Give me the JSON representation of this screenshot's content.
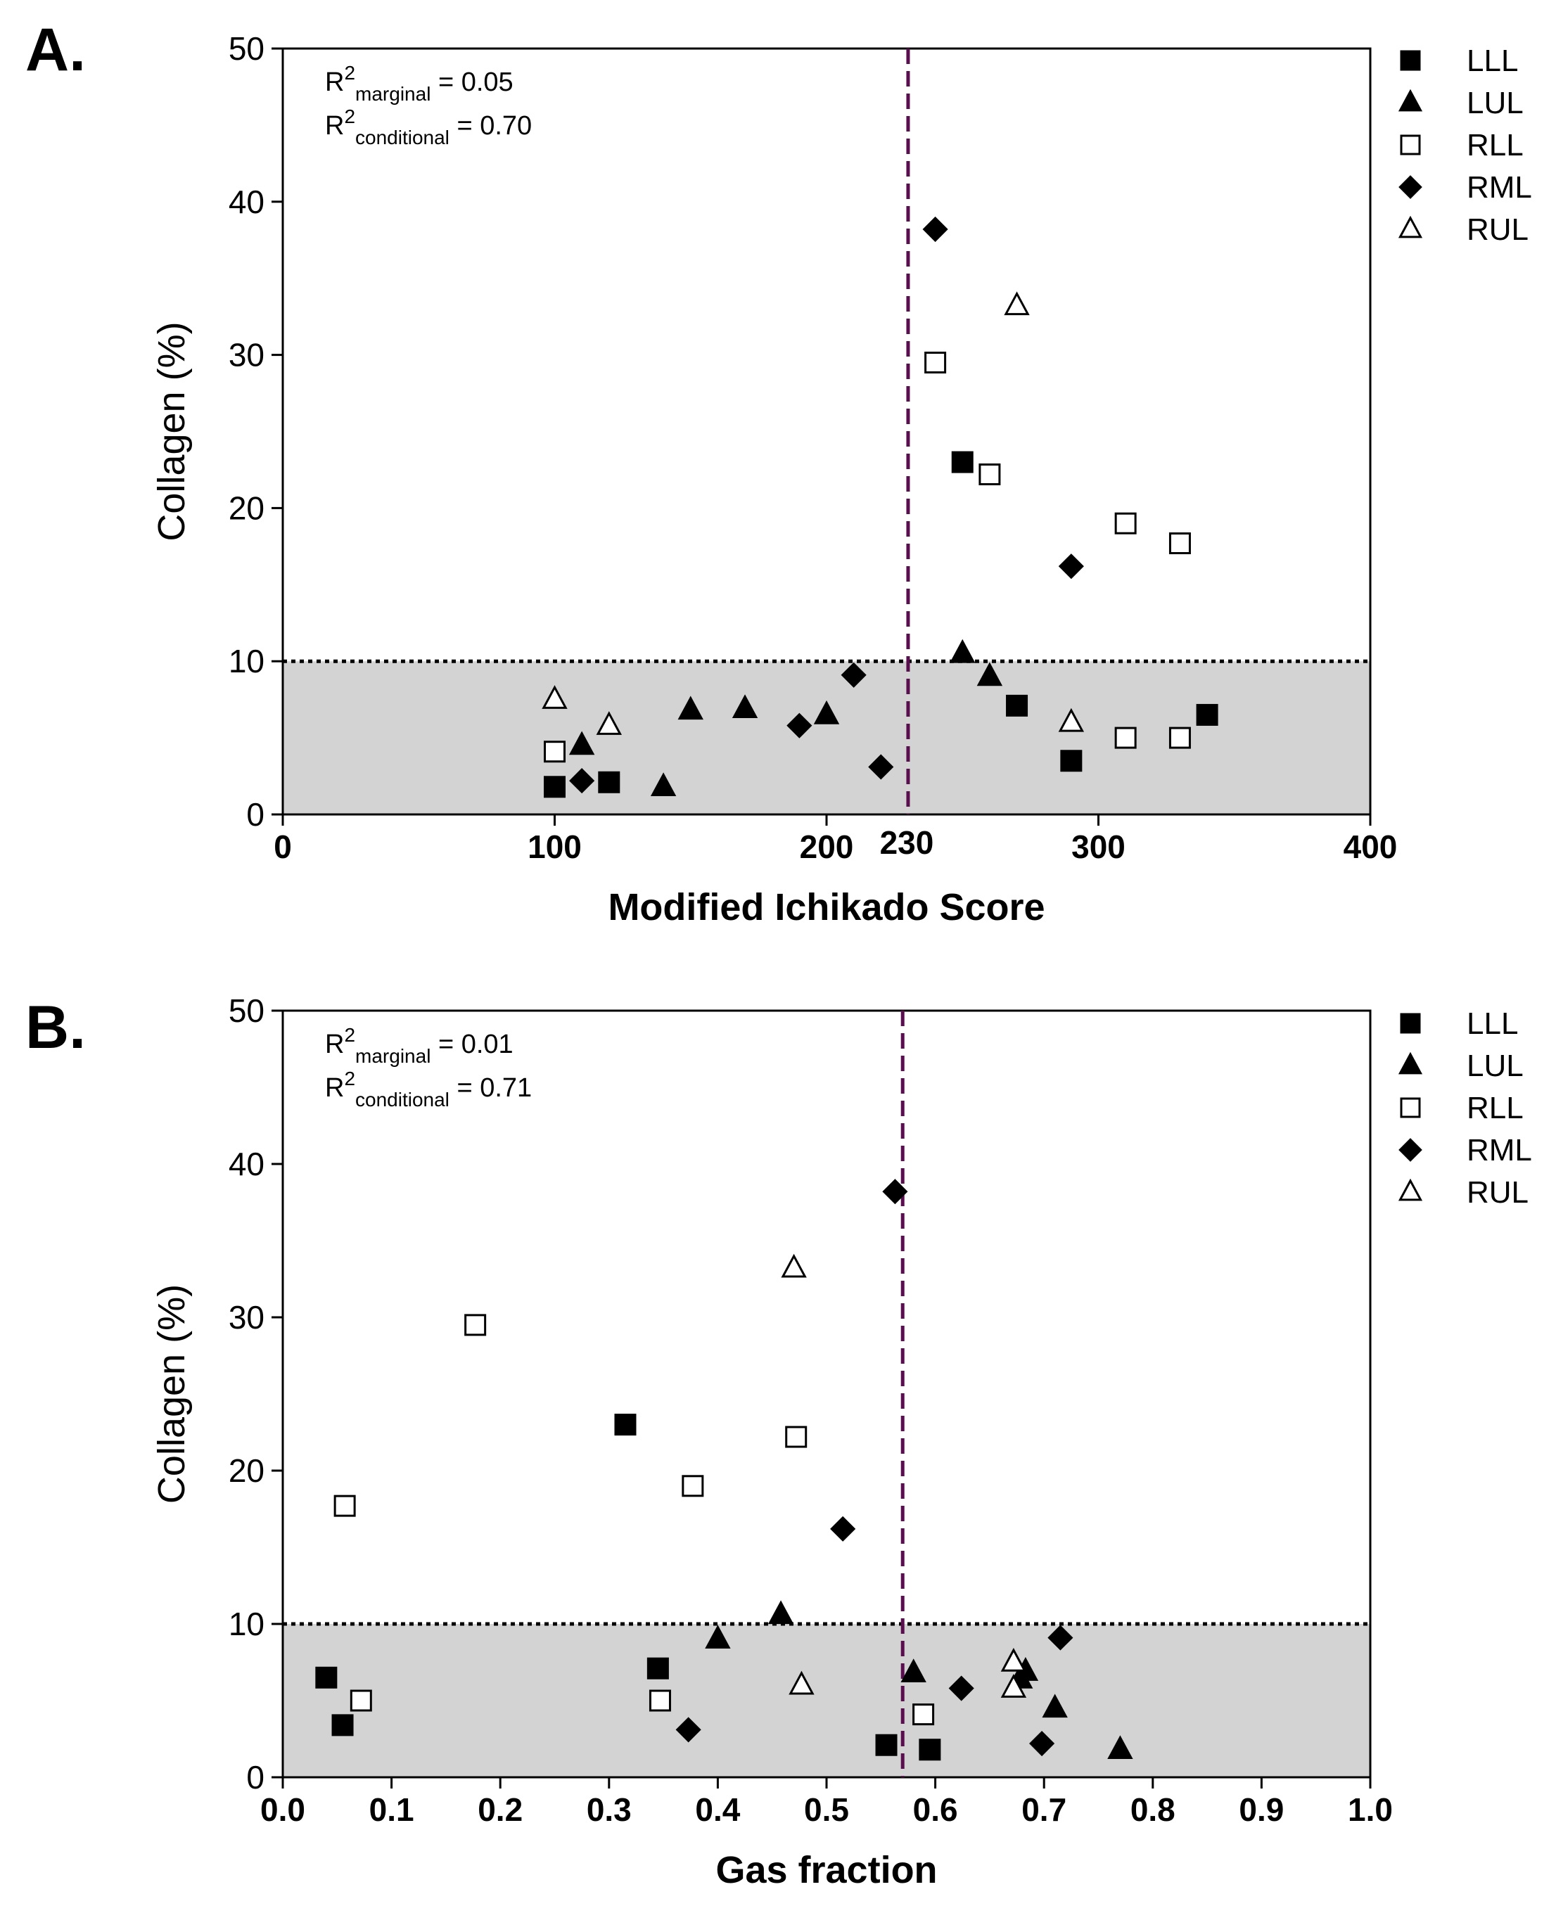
{
  "chart_data": [
    {
      "type": "scatter",
      "panel_label": "A.",
      "title": "",
      "xlabel": "Modified Ichikado Score",
      "ylabel": "Collagen (%)",
      "xlim": [
        0,
        400
      ],
      "ylim": [
        0,
        50
      ],
      "x_ticks": [
        "0",
        "100",
        "200",
        "300",
        "400"
      ],
      "x_tick_values": [
        0,
        100,
        200,
        300,
        400
      ],
      "extra_x_tick": {
        "label": "230",
        "value": 230
      },
      "y_ticks": [
        "0",
        "10",
        "20",
        "30",
        "40",
        "50"
      ],
      "y_tick_values": [
        0,
        10,
        20,
        30,
        40,
        50
      ],
      "threshold_y": 10,
      "threshold_x": 230,
      "threshold_x_color": "#5b0e4f",
      "shaded_region_color": "#d3d3d3",
      "annotation": {
        "r2_marginal_base": "R",
        "r2_marginal_sup": "2",
        "r2_marginal_sub": "marginal",
        "r2_marginal_value": " = 0.05",
        "r2_conditional_base": "R",
        "r2_conditional_sup": "2",
        "r2_conditional_sub": "conditional",
        "r2_conditional_value": " = 0.70"
      },
      "series": [
        {
          "name": "LLL",
          "marker": "filled-square",
          "points": [
            [
              100,
              1.8
            ],
            [
              120,
              2.1
            ],
            [
              250,
              23.0
            ],
            [
              270,
              7.1
            ],
            [
              290,
              3.5
            ],
            [
              340,
              6.5
            ]
          ]
        },
        {
          "name": "LUL",
          "marker": "filled-triangle",
          "points": [
            [
              110,
              4.5
            ],
            [
              140,
              1.8
            ],
            [
              150,
              6.8
            ],
            [
              170,
              6.9
            ],
            [
              200,
              6.5
            ],
            [
              250,
              10.5
            ],
            [
              260,
              9.0
            ]
          ]
        },
        {
          "name": "RLL",
          "marker": "open-square",
          "points": [
            [
              100,
              4.1
            ],
            [
              240,
              29.5
            ],
            [
              260,
              22.2
            ],
            [
              310,
              19.0
            ],
            [
              330,
              17.7
            ],
            [
              310,
              5.0
            ],
            [
              330,
              5.0
            ]
          ]
        },
        {
          "name": "RML",
          "marker": "filled-diamond",
          "points": [
            [
              110,
              2.2
            ],
            [
              190,
              5.8
            ],
            [
              210,
              9.1
            ],
            [
              220,
              3.1
            ],
            [
              240,
              38.2
            ],
            [
              290,
              16.2
            ]
          ]
        },
        {
          "name": "RUL",
          "marker": "open-triangle",
          "points": [
            [
              100,
              7.5
            ],
            [
              120,
              5.8
            ],
            [
              270,
              33.2
            ],
            [
              290,
              6.0
            ]
          ]
        }
      ]
    },
    {
      "type": "scatter",
      "panel_label": "B.",
      "title": "",
      "xlabel": "Gas  fraction",
      "ylabel": "Collagen (%)",
      "xlim": [
        0,
        1
      ],
      "ylim": [
        0,
        50
      ],
      "x_ticks": [
        "0.0",
        "0.1",
        "0.2",
        "0.3",
        "0.4",
        "0.5",
        "0.6",
        "0.7",
        "0.8",
        "0.9",
        "1.0"
      ],
      "x_tick_values": [
        0,
        0.1,
        0.2,
        0.3,
        0.4,
        0.5,
        0.6,
        0.7,
        0.8,
        0.9,
        1.0
      ],
      "y_ticks": [
        "0",
        "10",
        "20",
        "30",
        "40",
        "50"
      ],
      "y_tick_values": [
        0,
        10,
        20,
        30,
        40,
        50
      ],
      "threshold_y": 10,
      "threshold_x": 0.57,
      "threshold_x_color": "#5b0e4f",
      "shaded_region_color": "#d3d3d3",
      "annotation": {
        "r2_marginal_base": "R",
        "r2_marginal_sup": "2",
        "r2_marginal_sub": "marginal",
        "r2_marginal_value": " = 0.01",
        "r2_conditional_base": "R",
        "r2_conditional_sup": "2",
        "r2_conditional_sub": "conditional",
        "r2_conditional_value": " = 0.71"
      },
      "series": [
        {
          "name": "LLL",
          "marker": "filled-square",
          "points": [
            [
              0.04,
              6.5
            ],
            [
              0.055,
              3.4
            ],
            [
              0.315,
              23.0
            ],
            [
              0.345,
              7.1
            ],
            [
              0.555,
              2.1
            ],
            [
              0.595,
              1.8
            ]
          ]
        },
        {
          "name": "LUL",
          "marker": "filled-triangle",
          "points": [
            [
              0.4,
              9.0
            ],
            [
              0.458,
              10.6
            ],
            [
              0.58,
              6.8
            ],
            [
              0.678,
              6.4
            ],
            [
              0.683,
              6.9
            ],
            [
              0.71,
              4.5
            ],
            [
              0.77,
              1.8
            ]
          ]
        },
        {
          "name": "RLL",
          "marker": "open-square",
          "points": [
            [
              0.057,
              17.7
            ],
            [
              0.072,
              5.0
            ],
            [
              0.177,
              29.5
            ],
            [
              0.347,
              5.0
            ],
            [
              0.377,
              19.0
            ],
            [
              0.472,
              22.2
            ],
            [
              0.589,
              4.1
            ]
          ]
        },
        {
          "name": "RML",
          "marker": "filled-diamond",
          "points": [
            [
              0.373,
              3.1
            ],
            [
              0.515,
              16.2
            ],
            [
              0.563,
              38.2
            ],
            [
              0.624,
              5.8
            ],
            [
              0.698,
              2.2
            ],
            [
              0.715,
              9.1
            ]
          ]
        },
        {
          "name": "RUL",
          "marker": "open-triangle",
          "points": [
            [
              0.47,
              33.2
            ],
            [
              0.477,
              6.0
            ],
            [
              0.672,
              7.5
            ],
            [
              0.672,
              5.8
            ]
          ]
        }
      ]
    }
  ],
  "legend": [
    {
      "name": "LLL",
      "marker": "filled-square"
    },
    {
      "name": "LUL",
      "marker": "filled-triangle"
    },
    {
      "name": "RLL",
      "marker": "open-square"
    },
    {
      "name": "RML",
      "marker": "filled-diamond"
    },
    {
      "name": "RUL",
      "marker": "open-triangle"
    }
  ]
}
